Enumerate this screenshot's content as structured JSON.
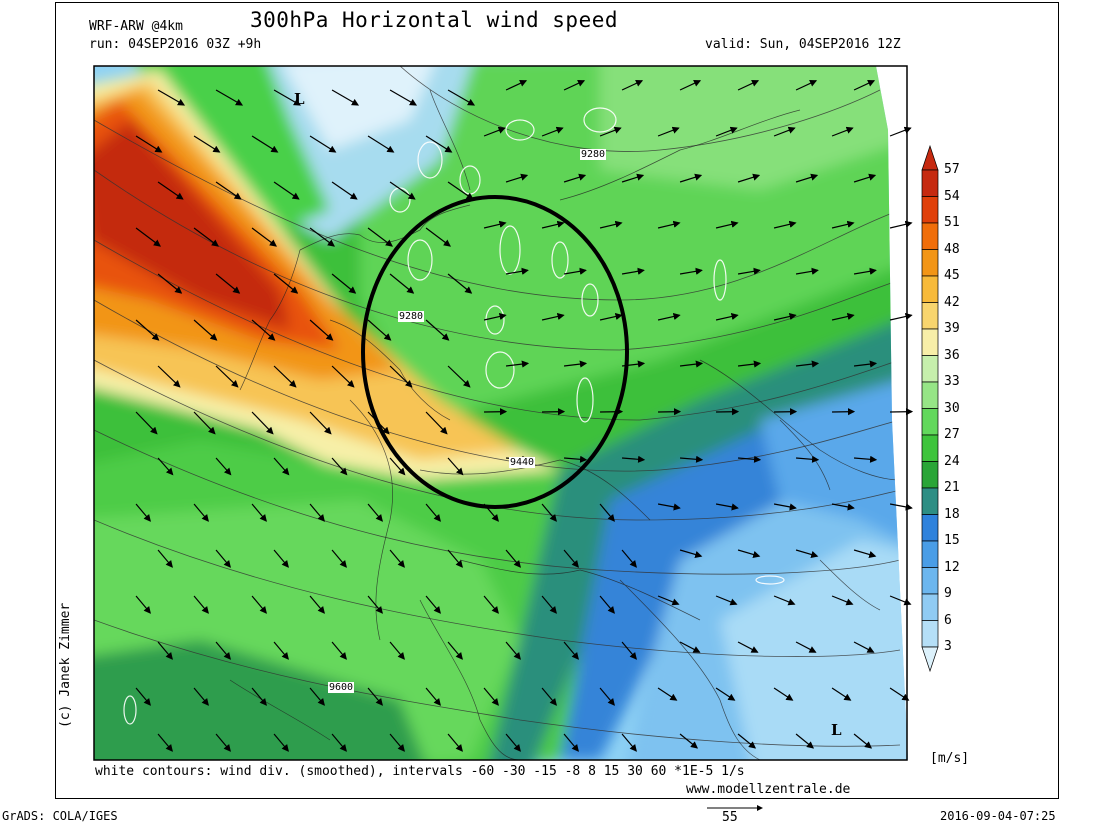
{
  "header": {
    "model": "WRF-ARW @4km",
    "title": "300hPa Horizontal wind speed",
    "run": "run: 04SEP2016 03Z +9h",
    "valid": "valid: Sun, 04SEP2016 12Z"
  },
  "map": {
    "low_markers": [
      "L",
      "L"
    ],
    "contour_labels": [
      "9280",
      "9280",
      "9440",
      "9600"
    ],
    "footnote": "white contours: wind div. (smoothed), intervals -60 -30 -15 -8 8 15 30 60 *1E-5 1/s",
    "credit": "(c) Janek Zimmer",
    "website": "www.modellzentrale.de",
    "vector_reference": "55"
  },
  "colorbar": {
    "unit": "[m/s]",
    "levels": [
      "57",
      "54",
      "51",
      "48",
      "45",
      "42",
      "39",
      "36",
      "33",
      "30",
      "27",
      "24",
      "21",
      "18",
      "15",
      "12",
      "9",
      "6",
      "3"
    ],
    "colors": [
      "#c62a10",
      "#e0400a",
      "#f06e0a",
      "#f29516",
      "#f7ba3a",
      "#f8d56e",
      "#f7eea8",
      "#c6efac",
      "#96e586",
      "#62d85c",
      "#3ec43c",
      "#2aa537",
      "#2e8e84",
      "#2f82dc",
      "#4a9de6",
      "#6cb6ee",
      "#90cbf3",
      "#b5dff7",
      "#dcf1fb"
    ]
  },
  "footer": {
    "left": "GrADS: COLA/IGES",
    "right": "2016-09-04-07:25"
  }
}
